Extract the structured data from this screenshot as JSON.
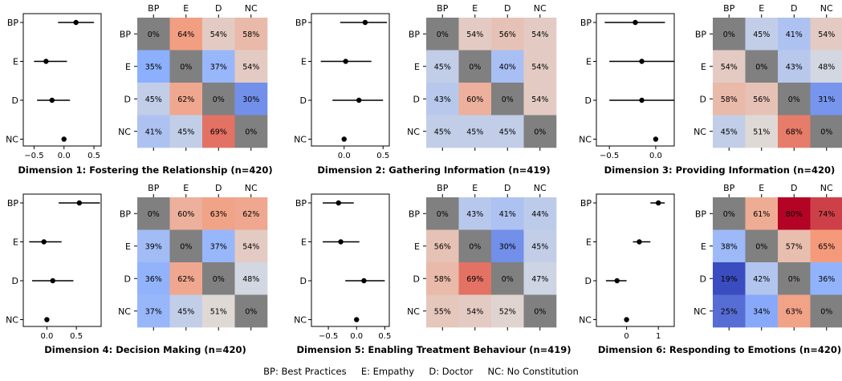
{
  "legend_footer": "BP: Best Practices     E: Empathy     D: Doctor     NC: No Constitution",
  "chart_data": [
    {
      "type": "heatmap",
      "title": "Dimension 1: Fostering the Relationship (n=420)",
      "categories": [
        "BP",
        "E",
        "D",
        "NC"
      ],
      "forest": {
        "points": [
          0.2,
          -0.3,
          -0.2,
          0.0
        ],
        "ci": [
          [
            -0.1,
            0.5
          ],
          [
            -0.5,
            0.05
          ],
          [
            -0.45,
            0.1
          ],
          [
            null,
            null
          ]
        ],
        "xlim": [
          -0.68,
          0.62
        ],
        "xticks": [
          -0.5,
          0.0,
          0.5
        ],
        "xticklabels": [
          "−0.5",
          "0.0",
          "0.5"
        ]
      },
      "matrix": [
        [
          "0%",
          "64%",
          "54%",
          "58%"
        ],
        [
          "35%",
          "0%",
          "37%",
          "54%"
        ],
        [
          "45%",
          "62%",
          "0%",
          "30%"
        ],
        [
          "41%",
          "45%",
          "69%",
          "0%"
        ]
      ]
    },
    {
      "type": "heatmap",
      "title": "Dimension 2: Gathering Information (n=419)",
      "categories": [
        "BP",
        "E",
        "D",
        "NC"
      ],
      "forest": {
        "points": [
          0.27,
          0.02,
          0.19,
          0.0
        ],
        "ci": [
          [
            -0.05,
            0.55
          ],
          [
            -0.3,
            0.35
          ],
          [
            -0.15,
            0.5
          ],
          [
            null,
            null
          ]
        ],
        "xlim": [
          -0.42,
          0.58
        ],
        "xticks": [
          0.0,
          0.5
        ],
        "xticklabels": [
          "0.0",
          "0.5"
        ]
      },
      "matrix": [
        [
          "0%",
          "54%",
          "56%",
          "54%"
        ],
        [
          "45%",
          "0%",
          "40%",
          "54%"
        ],
        [
          "43%",
          "60%",
          "0%",
          "54%"
        ],
        [
          "45%",
          "45%",
          "45%",
          "0%"
        ]
      ]
    },
    {
      "type": "heatmap",
      "title": "Dimension 3: Providing Information (n=420)",
      "categories": [
        "BP",
        "E",
        "D",
        "NC"
      ],
      "forest": {
        "points": [
          -0.22,
          -0.15,
          -0.15,
          0.0
        ],
        "ci": [
          [
            -0.55,
            0.1
          ],
          [
            -0.5,
            0.2
          ],
          [
            -0.5,
            0.2
          ],
          [
            null,
            null
          ]
        ],
        "xlim": [
          -0.64,
          0.2
        ],
        "xticks": [
          -0.5,
          0.0
        ],
        "xticklabels": [
          "−0.5",
          "0.0"
        ]
      },
      "matrix": [
        [
          "0%",
          "45%",
          "41%",
          "54%"
        ],
        [
          "54%",
          "0%",
          "43%",
          "48%"
        ],
        [
          "58%",
          "56%",
          "0%",
          "31%"
        ],
        [
          "45%",
          "51%",
          "68%",
          "0%"
        ]
      ]
    },
    {
      "type": "heatmap",
      "title": "Dimension 4: Decision Making (n=420)",
      "categories": [
        "BP",
        "E",
        "D",
        "NC"
      ],
      "forest": {
        "points": [
          0.55,
          -0.05,
          0.1,
          0.0
        ],
        "ci": [
          [
            0.2,
            0.9
          ],
          [
            -0.3,
            0.25
          ],
          [
            -0.25,
            0.45
          ],
          [
            null,
            null
          ]
        ],
        "xlim": [
          -0.4,
          0.92
        ],
        "xticks": [
          0.0,
          0.5
        ],
        "xticklabels": [
          "0.0",
          "0.5"
        ]
      },
      "matrix": [
        [
          "0%",
          "60%",
          "63%",
          "62%"
        ],
        [
          "39%",
          "0%",
          "37%",
          "54%"
        ],
        [
          "36%",
          "62%",
          "0%",
          "48%"
        ],
        [
          "37%",
          "45%",
          "51%",
          "0%"
        ]
      ]
    },
    {
      "type": "heatmap",
      "title": "Dimension 5: Enabling Treatment Behaviour (n=419)",
      "categories": [
        "BP",
        "E",
        "D",
        "NC"
      ],
      "forest": {
        "points": [
          -0.32,
          -0.28,
          0.13,
          0.0
        ],
        "ci": [
          [
            -0.6,
            -0.05
          ],
          [
            -0.6,
            0.05
          ],
          [
            -0.2,
            0.5
          ],
          [
            null,
            null
          ]
        ],
        "xlim": [
          -0.8,
          0.58
        ],
        "xticks": [
          -0.5,
          0.0,
          0.5
        ],
        "xticklabels": [
          "−0.5",
          "0.0",
          "0.5"
        ]
      },
      "matrix": [
        [
          "0%",
          "43%",
          "41%",
          "44%"
        ],
        [
          "56%",
          "0%",
          "30%",
          "45%"
        ],
        [
          "58%",
          "69%",
          "0%",
          "47%"
        ],
        [
          "55%",
          "54%",
          "52%",
          "0%"
        ]
      ]
    },
    {
      "type": "heatmap",
      "title": "Dimension 6: Responding to Emotions (n=420)",
      "categories": [
        "BP",
        "E",
        "D",
        "NC"
      ],
      "forest": {
        "points": [
          1.0,
          0.4,
          -0.3,
          0.0
        ],
        "ci": [
          [
            0.75,
            1.2
          ],
          [
            0.2,
            0.75
          ],
          [
            -0.65,
            0.0
          ],
          [
            null,
            null
          ]
        ],
        "xlim": [
          -0.95,
          1.5
        ],
        "xticks": [
          0,
          1
        ],
        "xticklabels": [
          "0",
          "1"
        ]
      },
      "matrix": [
        [
          "0%",
          "61%",
          "80%",
          "74%"
        ],
        [
          "38%",
          "0%",
          "57%",
          "65%"
        ],
        [
          "19%",
          "42%",
          "0%",
          "36%"
        ],
        [
          "25%",
          "34%",
          "63%",
          "0%"
        ]
      ]
    }
  ]
}
